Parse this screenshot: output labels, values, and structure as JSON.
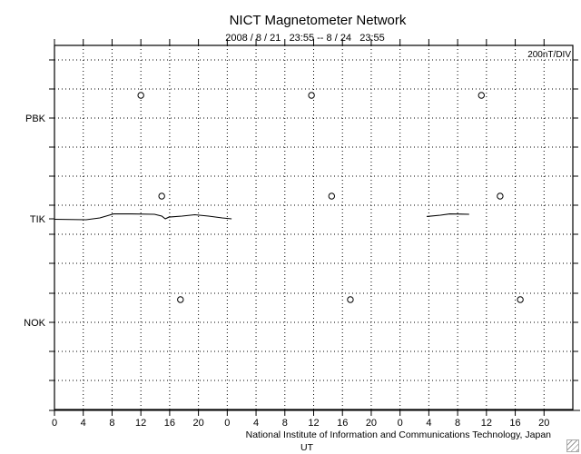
{
  "chart_data": {
    "type": "line",
    "title": "NICT Magnetometer Network",
    "subtitle": "2008 / 8 / 21   23:55 -- 8 / 24   23:55",
    "scale_label": "200nT/DIV",
    "xlabel": "UT",
    "credit": "National Institute of Information and Communications Technology, Japan",
    "xlim": [
      0,
      72
    ],
    "x_tick_labels": [
      "0",
      "4",
      "8",
      "12",
      "16",
      "20",
      "0",
      "4",
      "8",
      "12",
      "16",
      "20",
      "0",
      "4",
      "8",
      "12",
      "16",
      "20"
    ],
    "nT_per_div": 200,
    "grid": true,
    "stations": [
      {
        "name": "PBK",
        "noon_markers_hours": [
          12.0,
          35.7,
          59.3
        ],
        "series": []
      },
      {
        "name": "TIK",
        "noon_markers_hours": [
          14.9,
          38.5,
          61.9
        ],
        "series": [
          {
            "x": [
              0,
              4.4,
              6.3,
              7.6,
              8.2,
              10.7,
              13.9,
              14.9,
              15.4,
              15.9,
              17.7,
              19.5,
              21.4,
              23.3,
              24.6
            ],
            "y": [
              -3,
              -6,
              6,
              25,
              34,
              34,
              31,
              19,
              0,
              12,
              19,
              28,
              19,
              6,
              0
            ]
          },
          {
            "x": [
              51.7,
              53.6,
              54.9,
              57.6
            ],
            "y": [
              16,
              25,
              34,
              31
            ]
          }
        ]
      },
      {
        "name": "NOK",
        "noon_markers_hours": [
          17.5,
          41.1,
          64.7
        ],
        "series": []
      }
    ]
  }
}
